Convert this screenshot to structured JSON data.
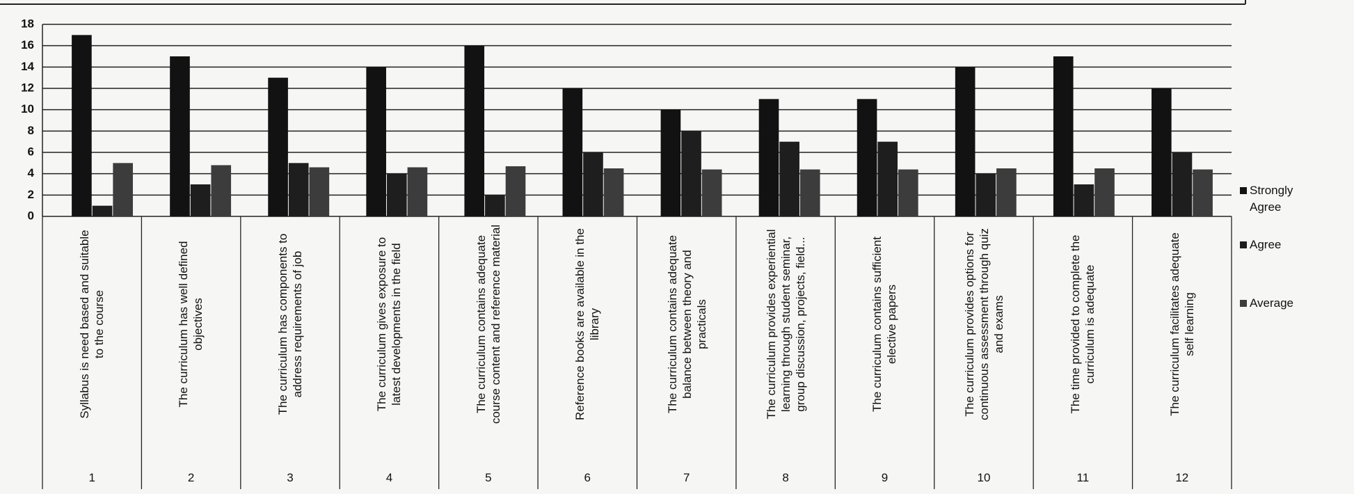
{
  "chart_data": {
    "type": "bar",
    "categories": [
      "Syllabus is need based and suitable to the course",
      "The curriculum has well defined objectives",
      "The curriculum has components to address requirements of job",
      "The curriculum gives exposure to latest developments in the field",
      "The curriculum contains adequate course content and reference material",
      "Reference books are available in the library",
      "The curriculum contains adequate balance between theory and practicals",
      "The curriculum provides experiential learning through student seminar, group discussion, projects, field...",
      "The curriculum contains sufficient elective papers",
      "The curriculum provides options for continuous assessment through quiz and exams",
      "The time provided to complete the curriculum is adequate",
      "The curriculum facilitates adequate self learning"
    ],
    "category_numbers": [
      "1",
      "2",
      "3",
      "4",
      "5",
      "6",
      "7",
      "8",
      "9",
      "10",
      "11",
      "12"
    ],
    "series": [
      {
        "name": "Strongly Agree",
        "color": "#121212",
        "values": [
          17,
          15,
          13,
          14,
          16,
          12,
          10,
          11,
          11,
          14,
          15,
          12
        ]
      },
      {
        "name": "Agree",
        "color": "#1e1e1e",
        "values": [
          1,
          3,
          5,
          4,
          2,
          6,
          8,
          7,
          7,
          4,
          3,
          6
        ]
      },
      {
        "name": "Average",
        "color": "#3c3c3c",
        "values": [
          5,
          4.8,
          4.6,
          4.6,
          4.7,
          4.5,
          4.4,
          4.4,
          4.4,
          4.5,
          4.5,
          4.4
        ]
      }
    ],
    "ylim": [
      0,
      18
    ],
    "yticks": [
      0,
      2,
      4,
      6,
      8,
      10,
      12,
      14,
      16,
      18
    ],
    "grid": true,
    "legend": "right"
  }
}
